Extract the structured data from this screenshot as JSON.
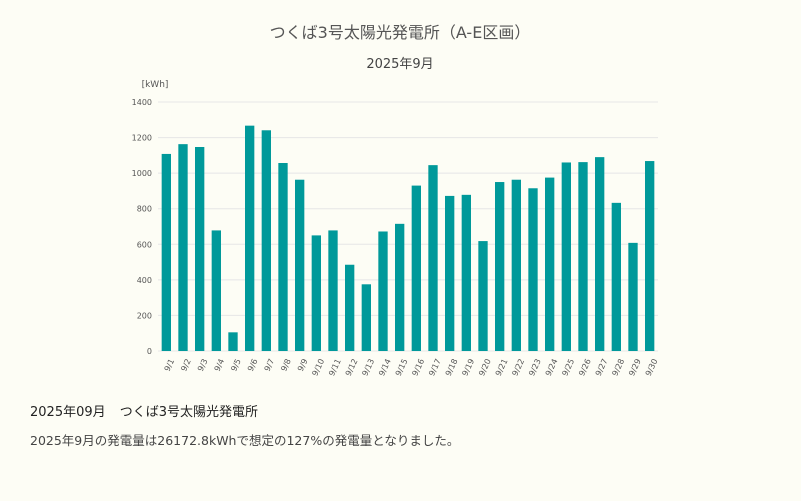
{
  "chart_data": {
    "type": "bar",
    "title": "つくば3号太陽光発電所（A-E区画）",
    "subtitle": "2025年9月",
    "unit_label": "[kWh]",
    "xlabel": "",
    "ylabel": "kWh",
    "ylim": [
      0,
      1400
    ],
    "yticks": [
      0,
      200,
      400,
      600,
      800,
      1000,
      1200,
      1400
    ],
    "grid": true,
    "legend": "none",
    "bar_color": "#00999a",
    "categories": [
      "9/1",
      "9/2",
      "9/3",
      "9/4",
      "9/5",
      "9/6",
      "9/7",
      "9/8",
      "9/9",
      "9/10",
      "9/11",
      "9/12",
      "9/13",
      "9/14",
      "9/15",
      "9/16",
      "9/17",
      "9/18",
      "9/19",
      "9/20",
      "9/21",
      "9/22",
      "9/23",
      "9/24",
      "9/25",
      "9/26",
      "9/27",
      "9/28",
      "9/29",
      "9/30"
    ],
    "values": [
      1108,
      1163,
      1147,
      678,
      105,
      1267,
      1241,
      1057,
      963,
      650,
      678,
      485,
      375,
      672,
      715,
      930,
      1045,
      872,
      878,
      618,
      950,
      963,
      915,
      975,
      1060,
      1062,
      1090,
      833,
      608,
      1068
    ]
  },
  "summary": {
    "date": "2025年09月",
    "plant": "つくば3号太陽光発電所",
    "text": "2025年9月の発電量は26172.8kWhで想定の127%の発電量となりました。"
  },
  "colors": {
    "background": "#fdfdf5",
    "grid": "#e6e6e6",
    "text": "#555555"
  }
}
